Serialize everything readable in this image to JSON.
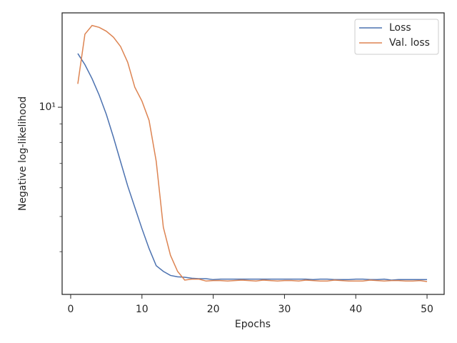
{
  "chart_data": {
    "type": "line",
    "xlabel": "Epochs",
    "ylabel": "Negative log-likelihood",
    "x": [
      1,
      2,
      3,
      4,
      5,
      6,
      7,
      8,
      9,
      10,
      11,
      12,
      13,
      14,
      15,
      16,
      17,
      18,
      19,
      20,
      21,
      22,
      23,
      24,
      25,
      26,
      27,
      28,
      29,
      30,
      31,
      32,
      33,
      34,
      35,
      36,
      37,
      38,
      39,
      40,
      41,
      42,
      43,
      44,
      45,
      46,
      47,
      48,
      49,
      50
    ],
    "series": [
      {
        "name": "Loss",
        "color": "#4c72b0",
        "values": [
          14.06,
          13.1,
          11.99,
          10.8,
          9.56,
          8.27,
          7.08,
          6.07,
          5.3,
          4.63,
          4.08,
          3.66,
          3.53,
          3.44,
          3.41,
          3.4,
          3.38,
          3.37,
          3.37,
          3.35,
          3.36,
          3.36,
          3.36,
          3.36,
          3.36,
          3.36,
          3.36,
          3.36,
          3.36,
          3.36,
          3.36,
          3.36,
          3.36,
          3.35,
          3.36,
          3.36,
          3.35,
          3.35,
          3.35,
          3.36,
          3.36,
          3.35,
          3.35,
          3.36,
          3.34,
          3.35,
          3.35,
          3.35,
          3.35,
          3.35
        ]
      },
      {
        "name": "Val. loss",
        "color": "#dd8452",
        "values": [
          11.6,
          15.9,
          16.8,
          16.6,
          16.2,
          15.6,
          14.7,
          13.3,
          11.35,
          10.4,
          9.2,
          7.1,
          4.67,
          3.91,
          3.53,
          3.34,
          3.36,
          3.36,
          3.32,
          3.33,
          3.33,
          3.32,
          3.33,
          3.34,
          3.33,
          3.32,
          3.34,
          3.33,
          3.32,
          3.33,
          3.33,
          3.32,
          3.34,
          3.33,
          3.32,
          3.32,
          3.34,
          3.33,
          3.32,
          3.32,
          3.32,
          3.34,
          3.33,
          3.32,
          3.33,
          3.33,
          3.32,
          3.32,
          3.33,
          3.31
        ]
      }
    ],
    "xlim": [
      -1.2,
      52.4
    ],
    "xticks": [
      0,
      10,
      20,
      30,
      40,
      50
    ],
    "ylim": [
      3.05,
      18.2
    ],
    "log_y": true,
    "yticks": [
      {
        "value": 10,
        "label": "10¹"
      }
    ],
    "yminorticks": [
      4,
      5,
      6,
      7,
      8,
      9
    ],
    "legend": "upper right"
  }
}
